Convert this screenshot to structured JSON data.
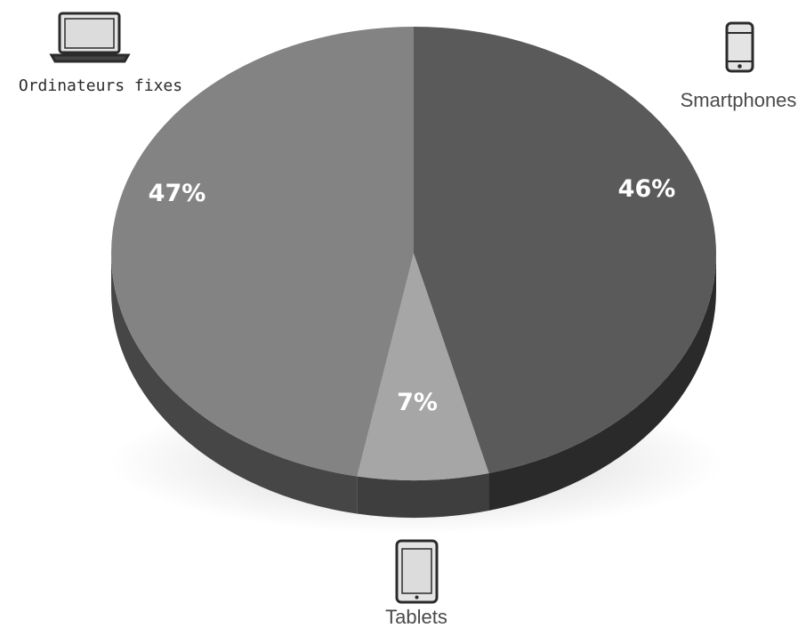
{
  "chart_data": {
    "type": "pie",
    "slices": [
      {
        "label": "Smartphones",
        "value": 46,
        "value_label": "46%",
        "color": "#5a5a5a",
        "side_color": "#2a2a2a",
        "icon": "smartphone-icon"
      },
      {
        "label": "Tablets",
        "value": 7,
        "value_label": "7%",
        "color": "#a6a6a6",
        "side_color": "#3e3e3e",
        "icon": "tablet-icon"
      },
      {
        "label": "Ordinateurs fixes",
        "value": 47,
        "value_label": "47%",
        "color": "#838383",
        "side_color": "#464646",
        "icon": "laptop-icon"
      }
    ]
  }
}
